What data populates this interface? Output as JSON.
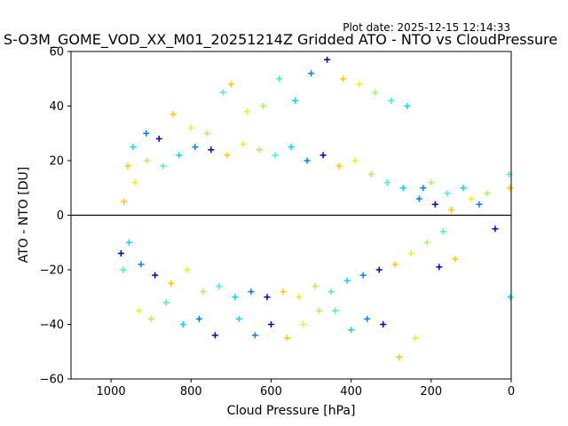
{
  "plot_date": "Plot date: 2025-12-15 12:14:33",
  "chart_data": {
    "type": "scatter",
    "title": "S-O3M_GOME_VOD_XX_M01_20251214Z Gridded ATO - NTO vs CloudPressure",
    "xlabel": "Cloud Pressure [hPa]",
    "ylabel": "ATO - NTO [DU]",
    "xlim": [
      1100,
      0
    ],
    "ylim": [
      -60,
      60
    ],
    "x_reversed": true,
    "xticks": [
      1000,
      800,
      600,
      400,
      200,
      0
    ],
    "yticks": [
      -60,
      -40,
      -20,
      0,
      20,
      40,
      60
    ],
    "reference_line_y": 0,
    "marker": "+",
    "colormap": "jet",
    "colors": [
      "#0000cd",
      "#0080ff",
      "#00d8ff",
      "#3cf5c8",
      "#a8f55a",
      "#e8f020",
      "#ffc800"
    ],
    "series": [
      {
        "x": [
          975,
          970,
          958,
          945,
          930,
          912,
          900,
          880,
          862,
          845,
          820,
          800,
          780,
          760,
          740,
          720,
          700,
          680,
          660,
          640,
          620,
          600,
          580,
          560,
          540,
          520,
          500,
          480,
          460,
          440,
          420,
          400,
          380,
          360,
          340,
          320,
          300,
          280,
          260,
          240,
          220,
          200,
          180,
          160,
          140,
          120,
          100,
          80,
          60,
          40,
          5,
          3,
          2
        ],
        "y": [
          -14,
          -20,
          18,
          25,
          -35,
          30,
          -38,
          28,
          -32,
          37,
          -40,
          32,
          -38,
          30,
          -44,
          45,
          48,
          -38,
          38,
          -44,
          40,
          -40,
          50,
          -45,
          42,
          -40,
          52,
          -35,
          57,
          -35,
          50,
          -42,
          48,
          -38,
          45,
          -40,
          42,
          -52,
          40,
          -45,
          10,
          12,
          -19,
          8,
          -16,
          10,
          6,
          4,
          8,
          -5,
          15,
          10,
          -30
        ]
      },
      {
        "x": [
          968,
          955,
          940,
          925,
          910,
          890,
          870,
          850,
          830,
          810,
          790,
          770,
          750,
          730,
          710,
          690,
          670,
          650,
          630,
          610,
          590,
          570,
          550,
          530,
          510,
          490,
          470,
          450,
          430,
          410,
          390,
          370,
          350,
          330,
          310,
          290,
          270,
          250,
          230,
          210,
          190,
          170,
          150
        ],
        "y": [
          5,
          -10,
          12,
          -18,
          20,
          -22,
          18,
          -25,
          22,
          -20,
          25,
          -28,
          24,
          -26,
          22,
          -30,
          26,
          -28,
          24,
          -30,
          22,
          -28,
          25,
          -30,
          20,
          -26,
          22,
          -28,
          18,
          -24,
          20,
          -22,
          15,
          -20,
          12,
          -18,
          10,
          -14,
          6,
          -10,
          4,
          -6,
          2
        ]
      }
    ]
  }
}
